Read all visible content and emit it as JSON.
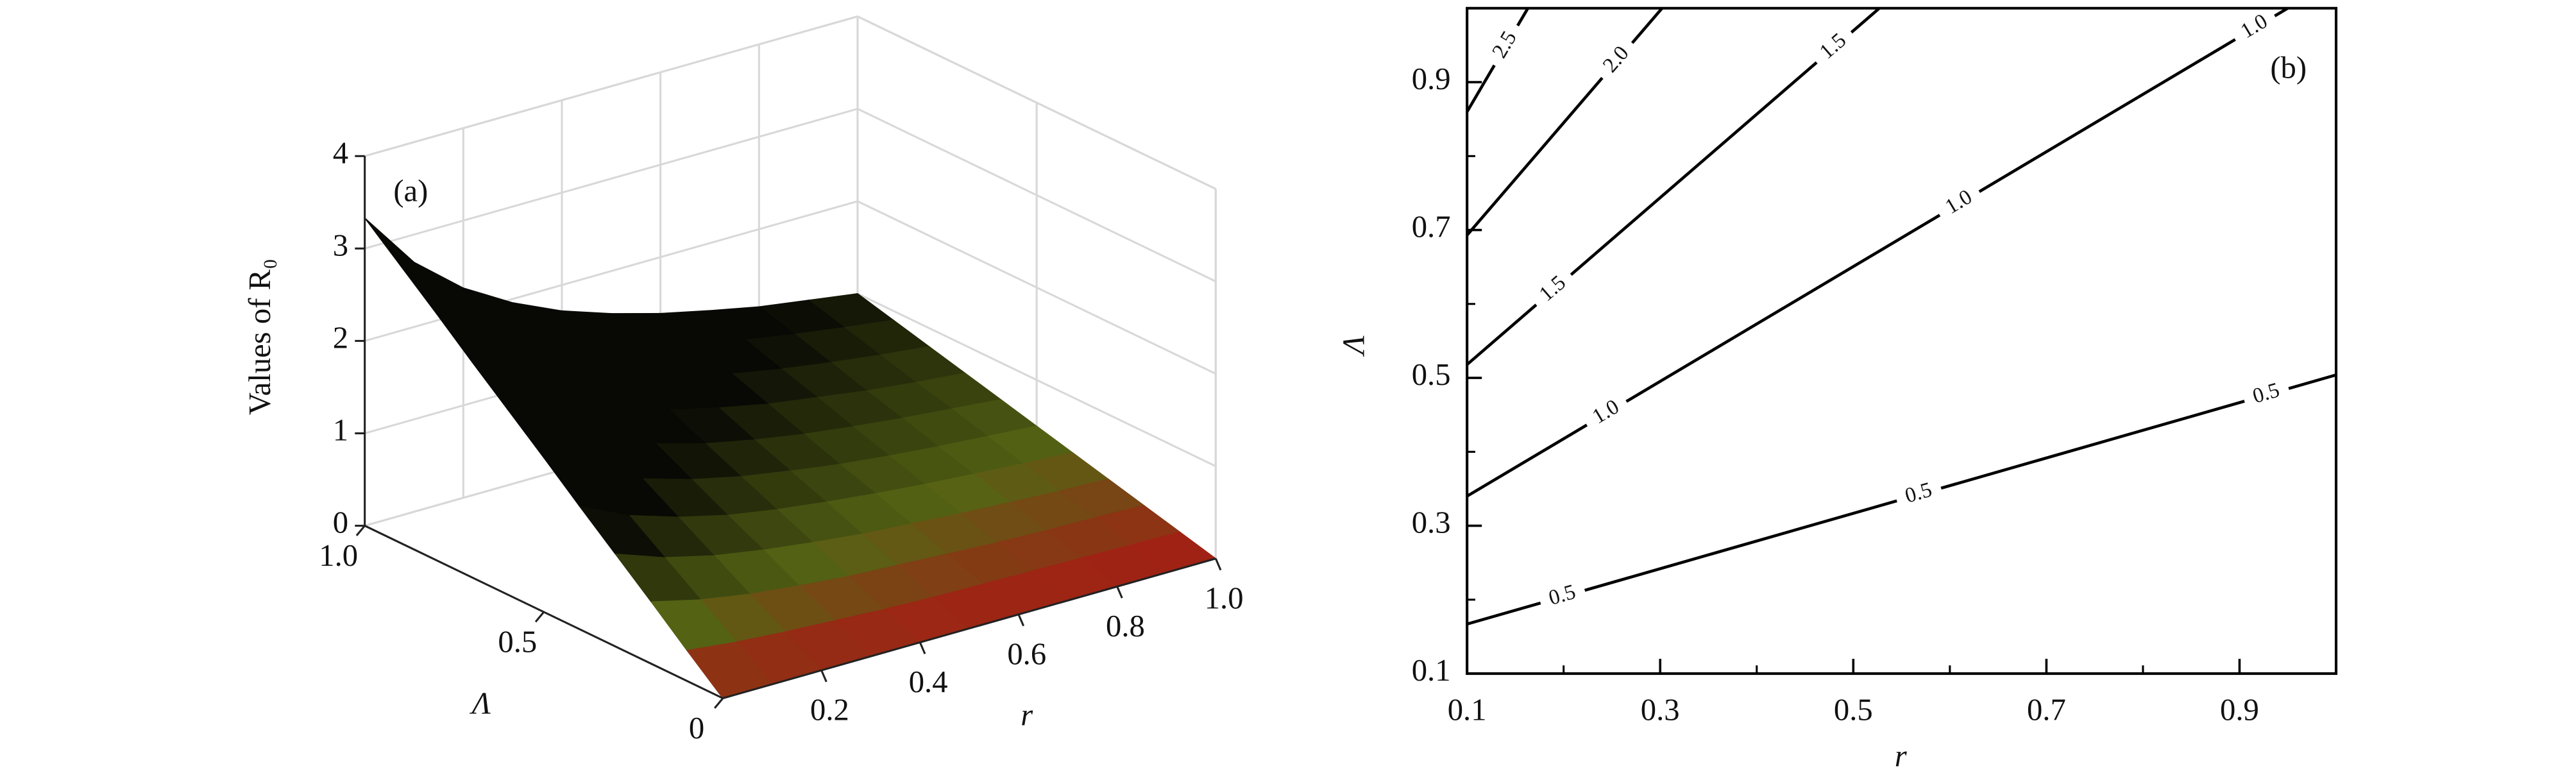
{
  "chart_data": [
    {
      "type": "surface",
      "panel_label": "(a)",
      "zlabel": "Values of R₀",
      "xlabel": "r",
      "ylabel": "Λ",
      "x": [
        0,
        0.1,
        0.2,
        0.3,
        0.4,
        0.5,
        0.6,
        0.7,
        0.8,
        0.9,
        1.0
      ],
      "y": [
        0,
        0.1,
        0.2,
        0.3,
        0.4,
        0.5,
        0.6,
        0.7,
        0.8,
        0.9,
        1.0
      ],
      "z": [
        [
          0,
          0,
          0,
          0,
          0,
          0,
          0,
          0,
          0,
          0,
          0
        ],
        [
          0.33,
          0.27,
          0.23,
          0.2,
          0.17,
          0.15,
          0.14,
          0.13,
          0.12,
          0.11,
          0.1
        ],
        [
          0.67,
          0.54,
          0.45,
          0.39,
          0.34,
          0.31,
          0.28,
          0.25,
          0.23,
          0.22,
          0.2
        ],
        [
          1.0,
          0.81,
          0.68,
          0.59,
          0.52,
          0.46,
          0.42,
          0.38,
          0.35,
          0.32,
          0.3
        ],
        [
          1.33,
          1.08,
          0.91,
          0.78,
          0.69,
          0.62,
          0.56,
          0.51,
          0.47,
          0.43,
          0.4
        ],
        [
          1.67,
          1.35,
          1.14,
          0.98,
          0.86,
          0.77,
          0.69,
          0.63,
          0.58,
          0.54,
          0.5
        ],
        [
          2.0,
          1.62,
          1.36,
          1.18,
          1.03,
          0.92,
          0.83,
          0.76,
          0.7,
          0.65,
          0.6
        ],
        [
          2.33,
          1.89,
          1.59,
          1.37,
          1.21,
          1.08,
          0.97,
          0.89,
          0.81,
          0.75,
          0.7
        ],
        [
          2.67,
          2.16,
          1.82,
          1.57,
          1.38,
          1.23,
          1.11,
          1.01,
          0.93,
          0.86,
          0.8
        ],
        [
          3.0,
          2.43,
          2.05,
          1.76,
          1.55,
          1.38,
          1.25,
          1.14,
          1.05,
          0.97,
          0.9
        ],
        [
          3.33,
          2.7,
          2.27,
          1.96,
          1.72,
          1.54,
          1.39,
          1.27,
          1.16,
          1.08,
          1.0
        ]
      ],
      "xlim": [
        0,
        1
      ],
      "ylim": [
        0,
        1
      ],
      "zlim": [
        0,
        4
      ],
      "xticks": [
        0.2,
        0.4,
        0.6,
        0.8,
        {
          "value": 1,
          "label": "1.0"
        }
      ],
      "yticks": [
        0,
        0.5,
        {
          "value": 1,
          "label": "1.0"
        }
      ],
      "zticks": [
        0,
        1,
        2,
        3,
        4
      ],
      "grid": true
    },
    {
      "type": "contour",
      "panel_label": "(b)",
      "xlabel": "r",
      "ylabel": "Λ",
      "series": [
        {
          "name": "0.5",
          "x": [
            0.1,
            1.0
          ],
          "y": [
            0.167,
            0.504
          ]
        },
        {
          "name": "1.0",
          "x": [
            0.1,
            0.95
          ],
          "y": [
            0.34,
            1.0
          ]
        },
        {
          "name": "1.5",
          "x": [
            0.1,
            0.527
          ],
          "y": [
            0.518,
            1.0
          ]
        },
        {
          "name": "2.0",
          "x": [
            0.1,
            0.302
          ],
          "y": [
            0.693,
            1.0
          ]
        },
        {
          "name": "2.5",
          "x": [
            0.1,
            0.163
          ],
          "y": [
            0.86,
            1.0
          ]
        }
      ],
      "color": "#000000",
      "xlim": [
        0.1,
        1.0
      ],
      "ylim": [
        0.1,
        1.0
      ],
      "xticks": [
        0.1,
        0.3,
        0.5,
        0.7,
        0.9
      ],
      "yticks": [
        0.1,
        0.3,
        0.5,
        0.7,
        0.9
      ],
      "xminorticks": [
        0.2,
        0.4,
        0.6,
        0.8
      ],
      "yminorticks": [
        0.2,
        0.4,
        0.6,
        0.8
      ]
    }
  ]
}
